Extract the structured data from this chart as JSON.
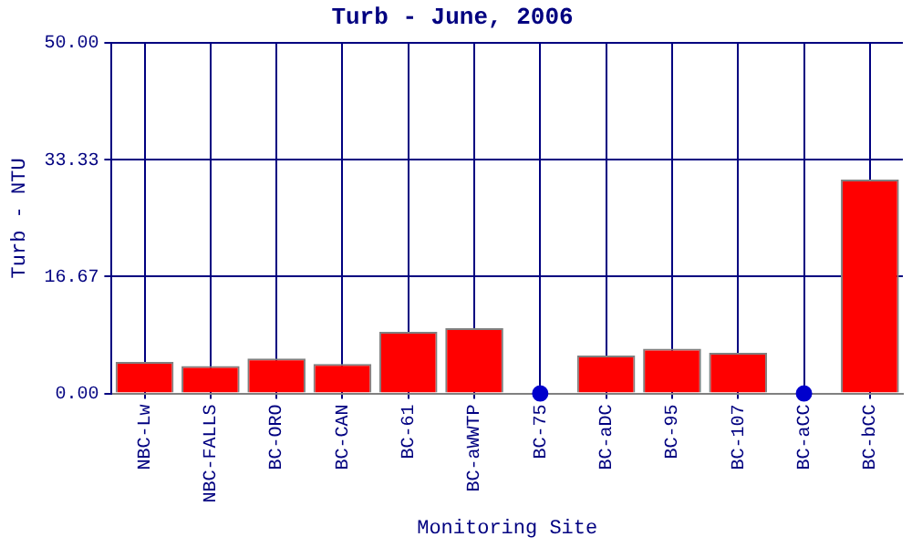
{
  "chart_data": {
    "type": "bar",
    "title": "Turb - June, 2006",
    "xlabel": "Monitoring Site",
    "ylabel": "Turb - NTU",
    "categories": [
      "NBC-Lw",
      "NBC-FALLS",
      "BC-ORO",
      "BC-CAN",
      "BC-61",
      "BC-aWWTP",
      "BC-75",
      "BC-aDC",
      "BC-95",
      "BC-107",
      "BC-aCC",
      "BC-bCC"
    ],
    "series": [
      {
        "color": "#ff0000",
        "values": [
          4.5,
          3.9,
          5.0,
          4.2,
          8.8,
          9.3,
          null,
          5.4,
          6.4,
          5.8,
          null,
          30.5
        ]
      },
      {
        "type": "scatter",
        "color": "#0000cc",
        "x": [
          "BC-75",
          "BC-aCC"
        ],
        "values": [
          0,
          0
        ]
      }
    ],
    "ylim": [
      0,
      50
    ],
    "yticks": [
      {
        "value": 0,
        "label": "0.00"
      },
      {
        "value": 16.67,
        "label": "16.67"
      },
      {
        "value": 33.33,
        "label": "33.33"
      },
      {
        "value": 50,
        "label": "50.00"
      }
    ],
    "grid": true,
    "legend": false,
    "marker": "circle"
  }
}
